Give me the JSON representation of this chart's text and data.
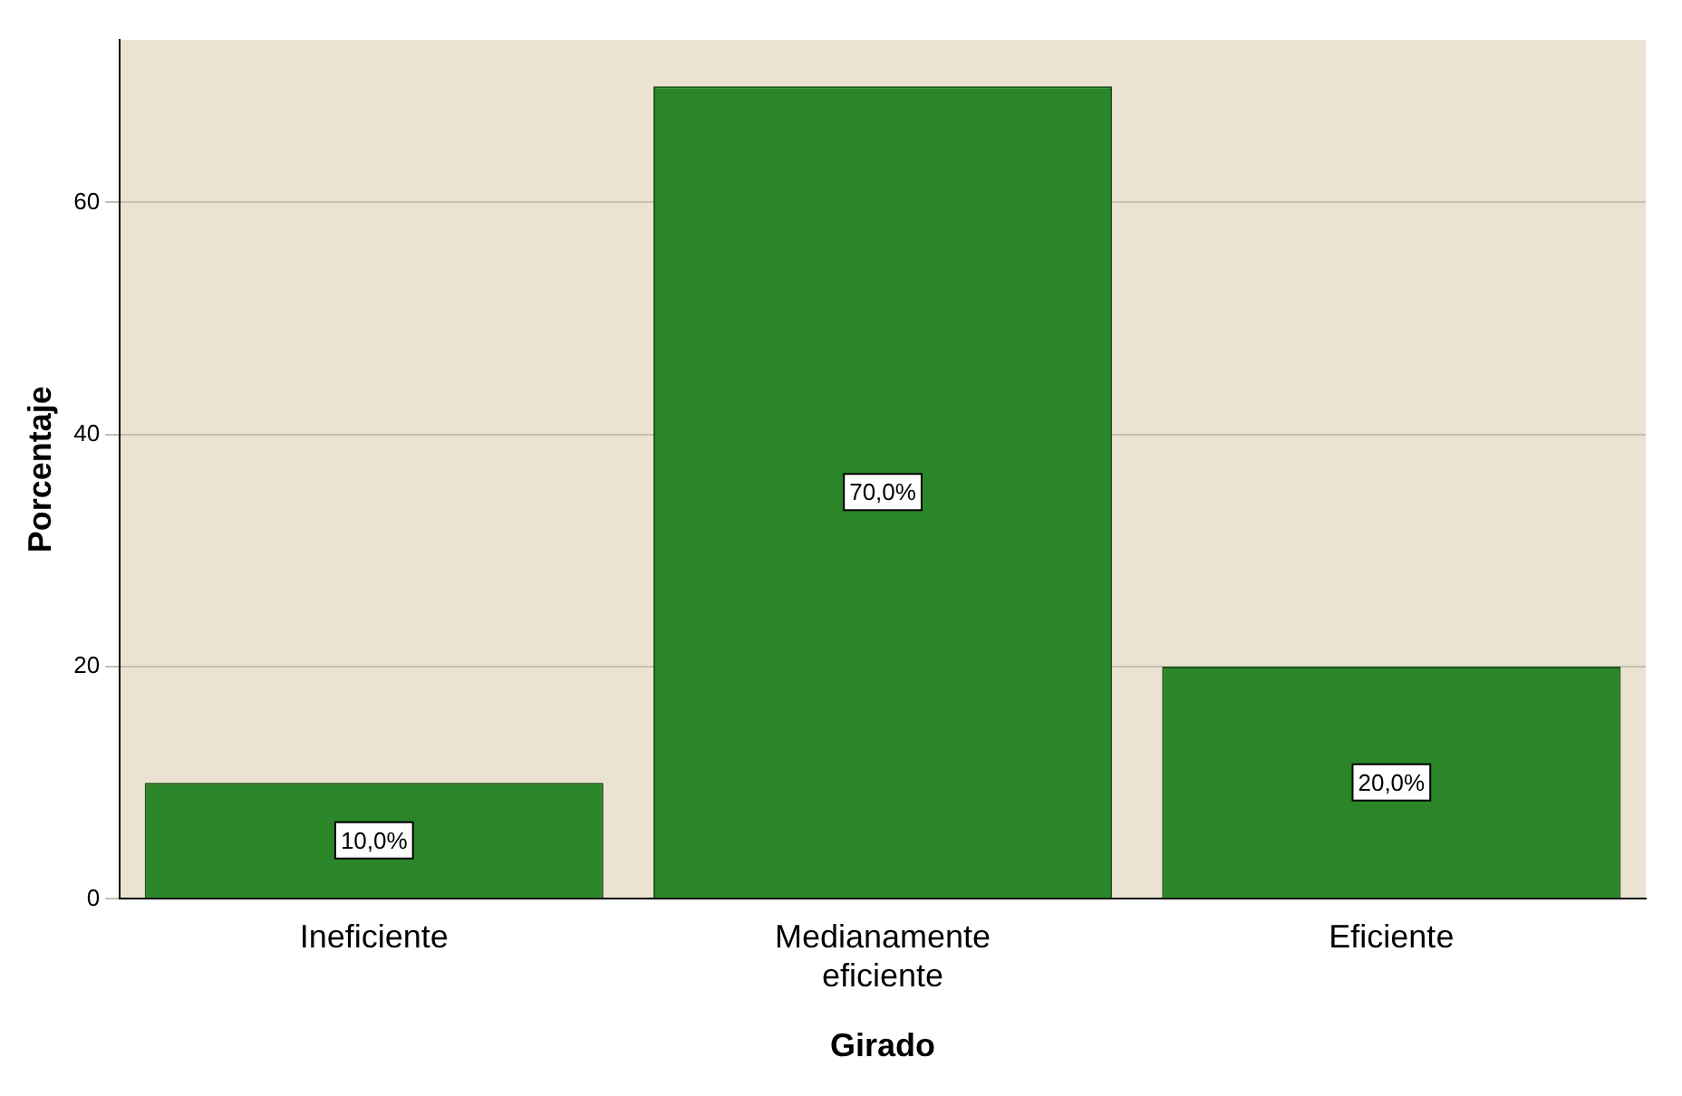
{
  "chart_data": {
    "type": "bar",
    "xlabel": "Girado",
    "ylabel": "Porcentaje",
    "categories": [
      "Ineficiente",
      "Medianamente eficiente",
      "Eficiente"
    ],
    "values": [
      10,
      70,
      20
    ],
    "value_labels": [
      "10,0%",
      "70,0%",
      "20,0%"
    ],
    "color": "#2a8629",
    "ylim": [
      0,
      74
    ],
    "yticks": [
      0,
      20,
      40,
      60
    ],
    "grid": "y",
    "legend": false
  }
}
